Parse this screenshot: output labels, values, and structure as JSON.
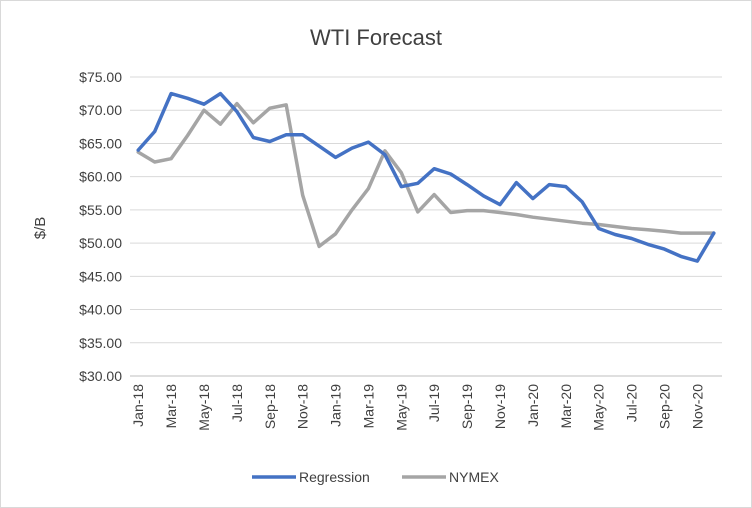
{
  "chart_data": {
    "type": "line",
    "title": "WTI Forecast",
    "xlabel": "",
    "ylabel": "$/B",
    "ylim": [
      30,
      75
    ],
    "y_ticks": [
      "$75.00",
      "$70.00",
      "$65.00",
      "$60.00",
      "$55.00",
      "$50.00",
      "$45.00",
      "$40.00",
      "$35.00",
      "$30.00"
    ],
    "y_tick_values": [
      75,
      70,
      65,
      60,
      55,
      50,
      45,
      40,
      35,
      30
    ],
    "grid": true,
    "legend_position": "bottom",
    "x_tick_labels": [
      "Jan-18",
      "Mar-18",
      "May-18",
      "Jul-18",
      "Sep-18",
      "Nov-18",
      "Jan-19",
      "Mar-19",
      "May-19",
      "Jul-19",
      "Sep-19",
      "Nov-19",
      "Jan-20",
      "Mar-20",
      "May-20",
      "Jul-20",
      "Sep-20",
      "Nov-20"
    ],
    "x": [
      "Jan-18",
      "Feb-18",
      "Mar-18",
      "Apr-18",
      "May-18",
      "Jun-18",
      "Jul-18",
      "Aug-18",
      "Sep-18",
      "Oct-18",
      "Nov-18",
      "Dec-18",
      "Jan-19",
      "Feb-19",
      "Mar-19",
      "Apr-19",
      "May-19",
      "Jun-19",
      "Jul-19",
      "Aug-19",
      "Sep-19",
      "Oct-19",
      "Nov-19",
      "Dec-19",
      "Jan-20",
      "Feb-20",
      "Mar-20",
      "Apr-20",
      "May-20",
      "Jun-20",
      "Jul-20",
      "Aug-20",
      "Sep-20",
      "Oct-20",
      "Nov-20",
      "Dec-20"
    ],
    "series": [
      {
        "name": "Regression",
        "color": "#4472c4",
        "values": [
          64.0,
          66.8,
          72.5,
          71.8,
          70.9,
          72.5,
          69.8,
          65.9,
          65.3,
          66.3,
          66.3,
          64.6,
          62.9,
          64.3,
          65.2,
          63.3,
          58.5,
          59.0,
          61.2,
          60.4,
          58.8,
          57.1,
          55.8,
          59.1,
          56.7,
          58.8,
          58.5,
          56.2,
          52.2,
          51.3,
          50.7,
          49.8,
          49.1,
          48.0,
          47.3,
          51.5
        ]
      },
      {
        "name": "NYMEX",
        "color": "#a5a5a5",
        "values": [
          63.7,
          62.2,
          62.7,
          66.2,
          70.0,
          67.9,
          71.0,
          68.1,
          70.3,
          70.8,
          57.2,
          49.5,
          51.4,
          55.0,
          58.2,
          63.9,
          60.6,
          54.7,
          57.3,
          54.6,
          54.9,
          54.9,
          54.6,
          54.3,
          53.9,
          53.6,
          53.3,
          53.0,
          52.8,
          52.5,
          52.2,
          52.0,
          51.8,
          51.5,
          51.5,
          51.5
        ]
      }
    ]
  }
}
